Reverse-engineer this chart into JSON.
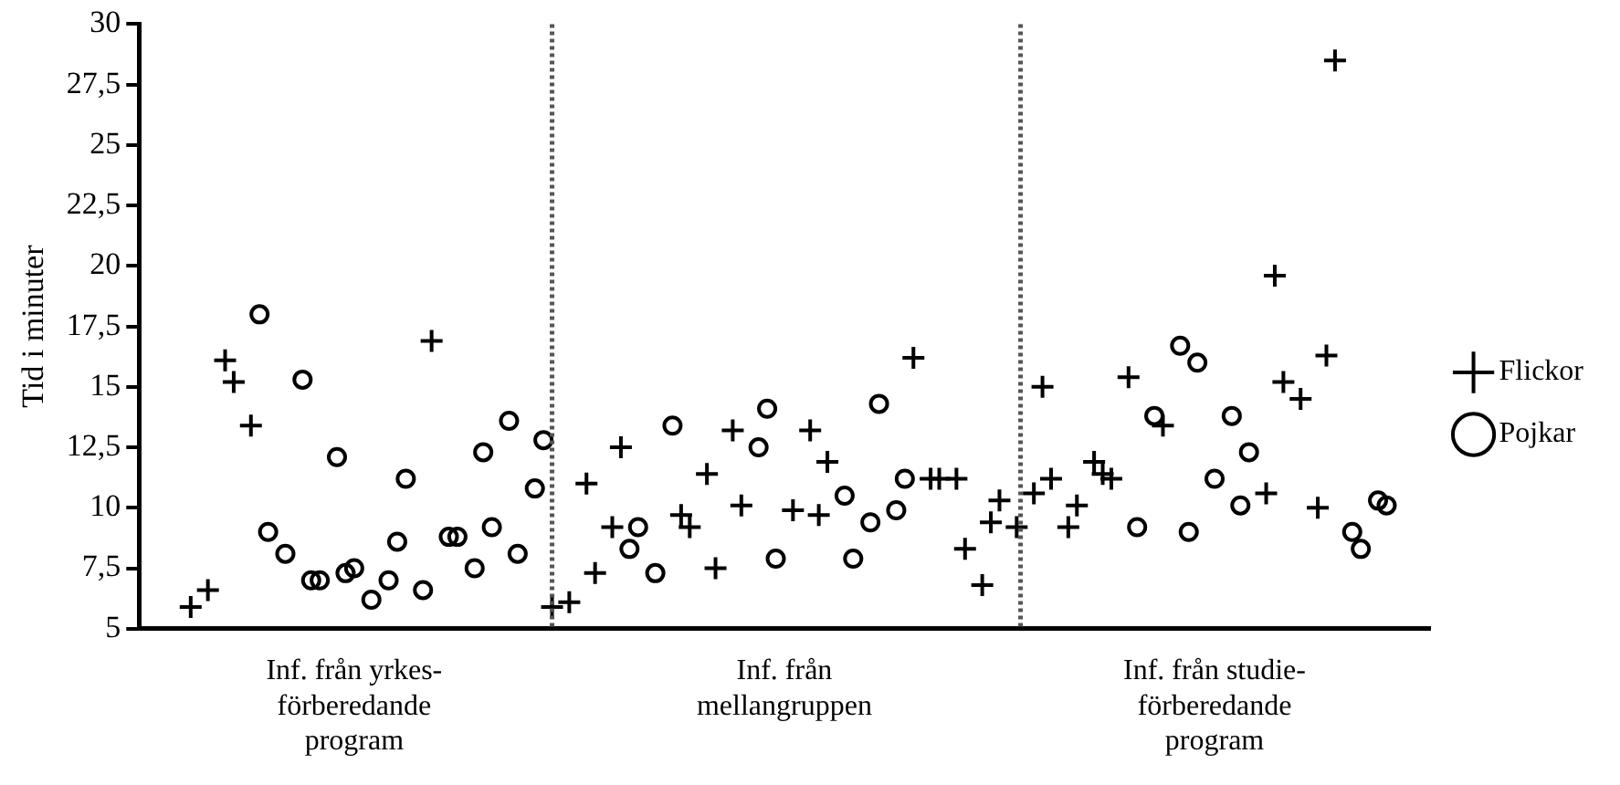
{
  "chart_data": {
    "type": "scatter",
    "ylabel": "Tid i minuter",
    "categories": [
      null,
      null,
      null,
      null,
      null,
      null,
      null,
      null,
      null,
      null,
      null,
      null,
      null,
      null,
      null,
      null,
      null,
      null,
      null,
      null,
      null,
      null,
      null,
      null,
      null,
      "Inf. från yrkes-förberedande program",
      null,
      null,
      null,
      null,
      null,
      null,
      null,
      null,
      null,
      null,
      null,
      null,
      null,
      null,
      null,
      null,
      null,
      null,
      null,
      null,
      null,
      null,
      null,
      null,
      null,
      null,
      null,
      null,
      null,
      null,
      null,
      null,
      null,
      null,
      null,
      null,
      null,
      null,
      null,
      null,
      null,
      null,
      null,
      null,
      null,
      null,
      null,
      null,
      null,
      "Inf. från mellangruppen",
      null,
      null,
      null,
      null,
      null,
      null,
      null,
      null,
      null,
      null,
      null,
      null,
      null,
      null,
      null,
      null,
      null,
      null,
      null,
      null,
      null,
      null,
      null,
      null,
      null,
      null,
      null,
      null,
      null,
      null,
      null,
      null,
      null,
      null,
      null,
      null,
      null,
      null,
      null,
      null,
      null,
      null,
      null,
      null,
      null,
      null,
      null,
      null,
      null,
      "Inf. från studie-förberedande program",
      null,
      null,
      null,
      null,
      null,
      null,
      null,
      null,
      null,
      null,
      null,
      null,
      null,
      null,
      null,
      null,
      null,
      null,
      null,
      null,
      null,
      null,
      null,
      null,
      null
    ],
    "ylim": [
      5,
      30
    ],
    "yticks": [
      5,
      {
        "value": 7.5,
        "label": "7,5"
      },
      10,
      {
        "value": 12.5,
        "label": "12,5"
      },
      15,
      {
        "value": 17.5,
        "label": "17,5"
      },
      20,
      {
        "value": 22.5,
        "label": "22,5"
      },
      25,
      {
        "value": 27.5,
        "label": "27,5"
      },
      30
    ],
    "legend": "right",
    "grid": false,
    "series": [
      {
        "name": "Flickor",
        "marker": "cross",
        "color": "#000000",
        "values": [
          null,
          null,
          null,
          null,
          null,
          null,
          5.9,
          null,
          6.6,
          null,
          16.1,
          15.2,
          null,
          13.4,
          null,
          null,
          null,
          null,
          null,
          null,
          null,
          null,
          null,
          null,
          null,
          null,
          null,
          null,
          null,
          null,
          null,
          null,
          null,
          null,
          16.9,
          null,
          null,
          null,
          null,
          null,
          null,
          null,
          null,
          null,
          null,
          null,
          null,
          null,
          5.9,
          null,
          6.1,
          null,
          11.0,
          7.3,
          null,
          9.2,
          12.5,
          null,
          null,
          null,
          null,
          null,
          null,
          9.7,
          9.2,
          null,
          11.4,
          7.5,
          null,
          13.2,
          10.1,
          null,
          null,
          null,
          null,
          null,
          9.9,
          null,
          13.2,
          9.7,
          11.9,
          null,
          null,
          null,
          null,
          null,
          null,
          null,
          null,
          null,
          16.2,
          null,
          11.2,
          11.2,
          null,
          11.2,
          8.3,
          null,
          6.8,
          9.4,
          10.3,
          null,
          9.2,
          null,
          10.6,
          15.0,
          11.2,
          null,
          9.2,
          10.1,
          null,
          11.9,
          11.4,
          11.2,
          null,
          15.4,
          null,
          null,
          null,
          13.4,
          null,
          null,
          null,
          null,
          null,
          null,
          null,
          null,
          null,
          null,
          null,
          10.6,
          19.6,
          15.2,
          null,
          14.5,
          null,
          10.0,
          16.3,
          28.5,
          null,
          null,
          null,
          null,
          null,
          null,
          null,
          null,
          null,
          null,
          null
        ]
      },
      {
        "name": "Pojkar",
        "marker": "circle",
        "color": "#000000",
        "values": [
          null,
          null,
          null,
          null,
          null,
          null,
          null,
          null,
          null,
          null,
          null,
          null,
          null,
          null,
          18.0,
          9.0,
          null,
          8.1,
          null,
          15.3,
          7.0,
          7.0,
          null,
          12.1,
          7.3,
          7.5,
          null,
          6.2,
          null,
          7.0,
          8.6,
          11.2,
          null,
          6.6,
          null,
          null,
          8.8,
          8.8,
          null,
          7.5,
          12.3,
          9.2,
          null,
          13.6,
          8.1,
          null,
          10.8,
          12.8,
          null,
          null,
          null,
          null,
          null,
          null,
          null,
          null,
          null,
          8.3,
          9.2,
          null,
          7.3,
          null,
          13.4,
          null,
          null,
          null,
          null,
          null,
          null,
          null,
          null,
          null,
          12.5,
          14.1,
          7.9,
          null,
          null,
          null,
          null,
          null,
          null,
          null,
          10.5,
          7.9,
          null,
          9.4,
          14.3,
          null,
          9.9,
          11.2,
          null,
          null,
          null,
          null,
          null,
          null,
          null,
          null,
          null,
          null,
          null,
          null,
          null,
          null,
          null,
          null,
          null,
          null,
          null,
          null,
          null,
          null,
          null,
          null,
          null,
          null,
          9.2,
          null,
          13.8,
          null,
          null,
          16.7,
          9.0,
          16.0,
          null,
          11.2,
          null,
          13.8,
          10.1,
          12.3,
          null,
          null,
          null,
          null,
          null,
          null,
          null,
          null,
          null,
          null,
          null,
          9.0,
          8.3,
          null,
          10.3,
          10.1,
          null,
          null,
          null,
          null,
          null
        ]
      }
    ]
  }
}
